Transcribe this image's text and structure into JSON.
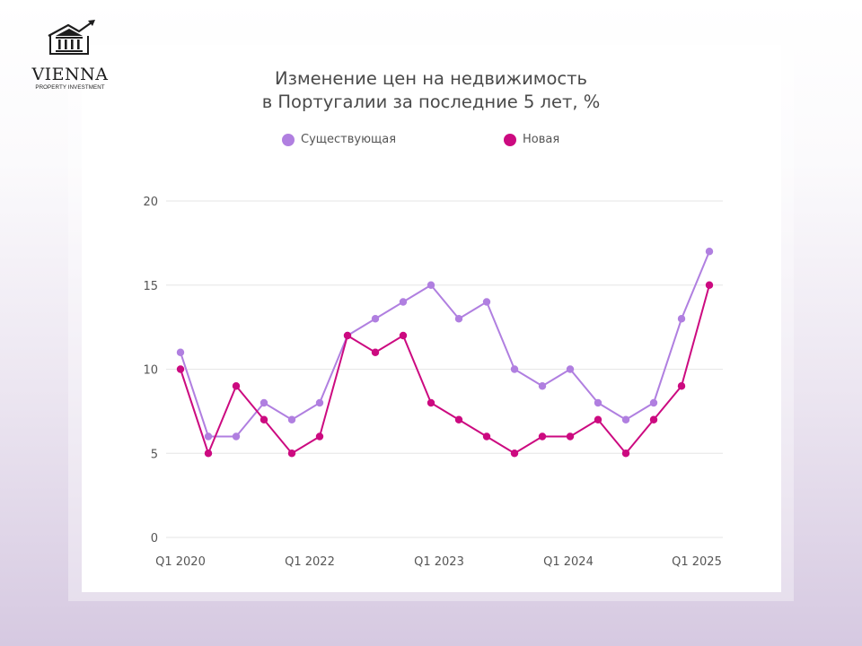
{
  "brand": {
    "name": "VIENNA",
    "tagline": "PROPERTY INVESTMENT"
  },
  "title": {
    "line1": "Изменение цен на недвижимость",
    "line2": "в Португалии за последние 5 лет, %"
  },
  "legend": [
    {
      "label": "Существующая",
      "color": "#b07fe0"
    },
    {
      "label": "Новая",
      "color": "#cc0a80"
    }
  ],
  "colors": {
    "existing": "#b07fe0",
    "new": "#cc0a80",
    "grid": "#e6e6e6",
    "axis_text": "#555555"
  },
  "chart_data": {
    "type": "line",
    "title": "Изменение цен на недвижимость в Португалии за последние 5 лет, %",
    "xlabel": "",
    "ylabel": "",
    "ylim": [
      0,
      20
    ],
    "yticks": [
      0,
      5,
      10,
      15,
      20
    ],
    "xtick_labels": [
      "Q1 2020",
      "Q1 2022",
      "Q1 2023",
      "Q1 2024",
      "Q1 2025"
    ],
    "grid": true,
    "legend_position": "top",
    "series": [
      {
        "name": "Существующая",
        "color": "#b07fe0",
        "values": [
          11,
          6,
          6,
          8,
          7,
          8,
          12,
          13,
          14,
          15,
          13,
          14,
          10,
          9,
          10,
          8,
          7,
          8,
          13,
          17
        ]
      },
      {
        "name": "Новая",
        "color": "#cc0a80",
        "values": [
          10,
          5,
          9,
          7,
          5,
          6,
          12,
          11,
          12,
          8,
          7,
          6,
          5,
          6,
          6,
          7,
          5,
          7,
          9,
          15
        ]
      }
    ]
  }
}
